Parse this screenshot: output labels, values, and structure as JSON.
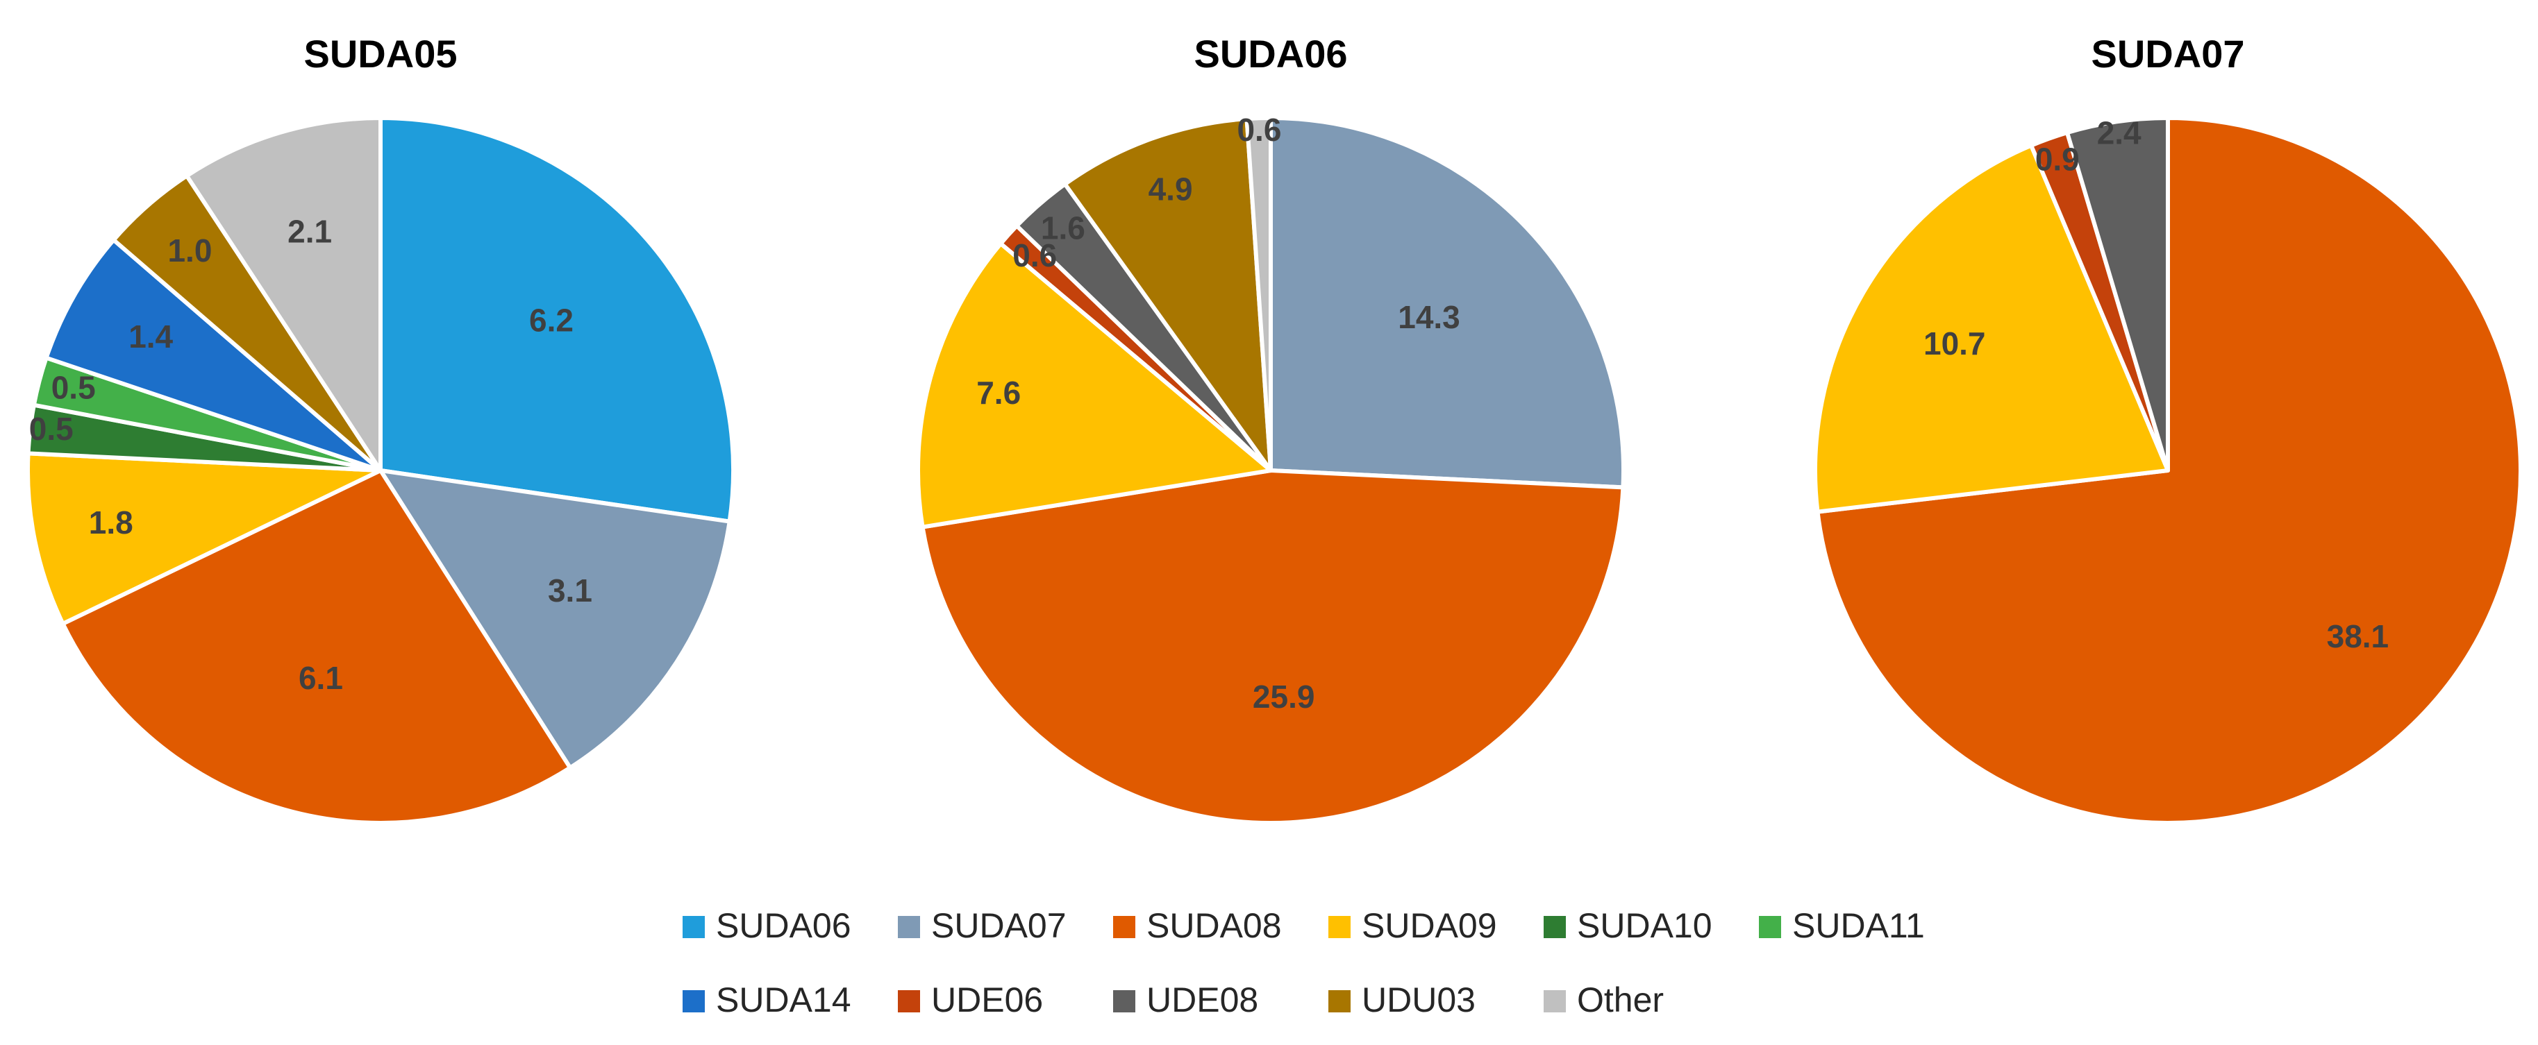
{
  "legend": {
    "items": [
      {
        "label": "SUDA06",
        "color": "#1f9ddb"
      },
      {
        "label": "SUDA07",
        "color": "#7f9ab5"
      },
      {
        "label": "SUDA08",
        "color": "#e05a00"
      },
      {
        "label": "SUDA09",
        "color": "#ffc000"
      },
      {
        "label": "SUDA10",
        "color": "#2e7d32"
      },
      {
        "label": "SUDA11",
        "color": "#43b049"
      },
      {
        "label": "SUDA14",
        "color": "#1c6fc9"
      },
      {
        "label": "UDE06",
        "color": "#c4420b"
      },
      {
        "label": "UDE08",
        "color": "#5f5f5f"
      },
      {
        "label": "UDU03",
        "color": "#a87600"
      },
      {
        "label": "Other",
        "color": "#c0c0c0"
      }
    ]
  },
  "chart_data": [
    {
      "type": "pie",
      "title": "SUDA05",
      "slices": [
        {
          "category": "SUDA06",
          "value": 6.2,
          "label": "6.2"
        },
        {
          "category": "SUDA07",
          "value": 3.1,
          "label": "3.1"
        },
        {
          "category": "SUDA08",
          "value": 6.1,
          "label": "6.1"
        },
        {
          "category": "SUDA09",
          "value": 1.8,
          "label": "1.8"
        },
        {
          "category": "SUDA10",
          "value": 0.5,
          "label": "0.5"
        },
        {
          "category": "SUDA11",
          "value": 0.5,
          "label": "0.5"
        },
        {
          "category": "SUDA14",
          "value": 1.4,
          "label": "1.4"
        },
        {
          "category": "UDU03",
          "value": 1.0,
          "label": "1.0"
        },
        {
          "category": "Other",
          "value": 2.1,
          "label": "2.1"
        }
      ]
    },
    {
      "type": "pie",
      "title": "SUDA06",
      "slices": [
        {
          "category": "SUDA07",
          "value": 14.3,
          "label": "14.3"
        },
        {
          "category": "SUDA08",
          "value": 25.9,
          "label": "25.9"
        },
        {
          "category": "SUDA09",
          "value": 7.6,
          "label": "7.6"
        },
        {
          "category": "UDE06",
          "value": 0.6,
          "label": "0.6"
        },
        {
          "category": "UDE08",
          "value": 1.6,
          "label": "1.6"
        },
        {
          "category": "UDU03",
          "value": 4.9,
          "label": "4.9"
        },
        {
          "category": "Other",
          "value": 0.6,
          "label": "0.6"
        }
      ]
    },
    {
      "type": "pie",
      "title": "SUDA07",
      "slices": [
        {
          "category": "SUDA08",
          "value": 38.1,
          "label": "38.1"
        },
        {
          "category": "SUDA09",
          "value": 10.7,
          "label": "10.7"
        },
        {
          "category": "UDE06",
          "value": 0.9,
          "label": "0.9"
        },
        {
          "category": "UDE08",
          "value": 2.4,
          "label": "2.4"
        }
      ]
    }
  ]
}
